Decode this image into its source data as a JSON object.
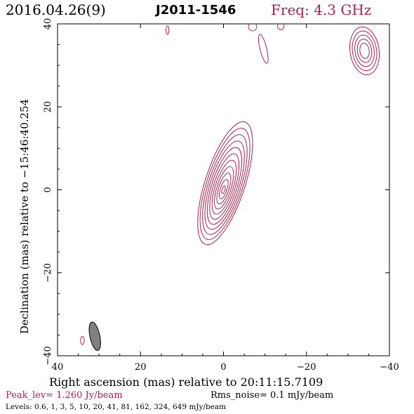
{
  "header": {
    "date": "2016.04.26(9)",
    "source": "J2011-1546",
    "freq": "Freq: 4.3 GHz"
  },
  "colors": {
    "contour": "#b3204c",
    "text_accent": "#b3204c",
    "axis": "#000000",
    "beam_fill": "#808080"
  },
  "chart_data": {
    "type": "contour",
    "xlabel": "Right ascension (mas) relative to 20:11:15.7109",
    "ylabel": "Declination (mas) relative to −15:46:40.254",
    "xlim": [
      40,
      -40
    ],
    "ylim": [
      -40,
      40
    ],
    "xticks": [
      40,
      20,
      0,
      -20,
      -40
    ],
    "yticks": [
      -40,
      -20,
      0,
      20,
      40
    ],
    "xtick_labels": [
      "40",
      "20",
      "0",
      "−20",
      "−40"
    ],
    "ytick_labels": [
      "−40",
      "−20",
      "0",
      "20",
      "40"
    ],
    "grid": false,
    "levels_mjy": [
      0.6,
      1,
      3,
      5,
      10,
      20,
      41,
      81,
      162,
      324,
      649
    ],
    "core": {
      "ra": 0,
      "dec": 0,
      "major": 8.6,
      "minor": 2.0,
      "pa_deg": 18,
      "outer_major": 15.5,
      "outer_minor": 4.8,
      "outer_shift": [
        -0.4,
        1.6
      ]
    },
    "side_components": [
      {
        "ra": 13.5,
        "dec": 38.5,
        "major": 1.0,
        "minor": 0.35,
        "pa_deg": 0,
        "levels": 1
      },
      {
        "ra": -7.0,
        "dec": 39.3,
        "major": 1.0,
        "minor": 1.0,
        "pa_deg": 0,
        "levels": 1
      },
      {
        "ra": -13.8,
        "dec": 39.4,
        "major": 0.8,
        "minor": 0.8,
        "pa_deg": 0,
        "levels": 1
      },
      {
        "ra": -9.6,
        "dec": 34.0,
        "major": 3.6,
        "minor": 0.8,
        "pa_deg": -14,
        "levels": 1
      },
      {
        "ra": -34.0,
        "dec": 33.5,
        "major": 5.8,
        "minor": 3.5,
        "pa_deg": -8,
        "levels": 5
      },
      {
        "ra": 34.0,
        "dec": -36.3,
        "major": 1.0,
        "minor": 0.45,
        "pa_deg": 0,
        "levels": 1
      }
    ],
    "beam": {
      "ra": 31.0,
      "dec": -35.3,
      "major": 3.5,
      "minor": 1.2,
      "pa_deg": -12
    },
    "peak_level": "Peak_lev=  1.260 Jy/beam",
    "rms_noise": "Rms_noise=  0.1 mJy/beam",
    "levels_text": "Levels: 0.6,   1,   3,   5,   10,   20,   41,   81,  162,  324,  649  mJy/beam"
  }
}
